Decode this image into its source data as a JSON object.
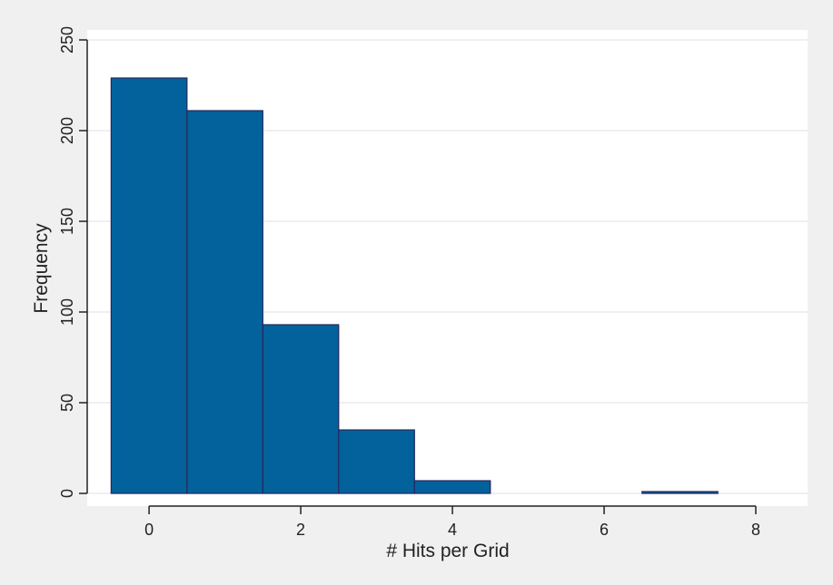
{
  "chart_data": {
    "type": "bar",
    "title": "",
    "xlabel": "# Hits per Grid",
    "ylabel": "Frequency",
    "bins": [
      {
        "x0": -0.5,
        "x1": 0.5,
        "value": 229
      },
      {
        "x0": 0.5,
        "x1": 1.5,
        "value": 211
      },
      {
        "x0": 1.5,
        "x1": 2.5,
        "value": 93
      },
      {
        "x0": 2.5,
        "x1": 3.5,
        "value": 35
      },
      {
        "x0": 3.5,
        "x1": 4.5,
        "value": 7
      },
      {
        "x0": 6.5,
        "x1": 7.5,
        "value": 1
      }
    ],
    "xlim": [
      -0.6,
      8
    ],
    "ylim": [
      0,
      250
    ],
    "xticks": [
      "0",
      "2",
      "4",
      "6",
      "8"
    ],
    "yticks": [
      "0",
      "50",
      "100",
      "150",
      "200",
      "250"
    ],
    "grid": true,
    "colors": {
      "bar_fill": "#03629b",
      "bar_edge": "#26285e",
      "background": "#f0f0f0",
      "plot_area": "#ffffff",
      "gridline": "#e8ecef",
      "axis": "#222222"
    }
  }
}
